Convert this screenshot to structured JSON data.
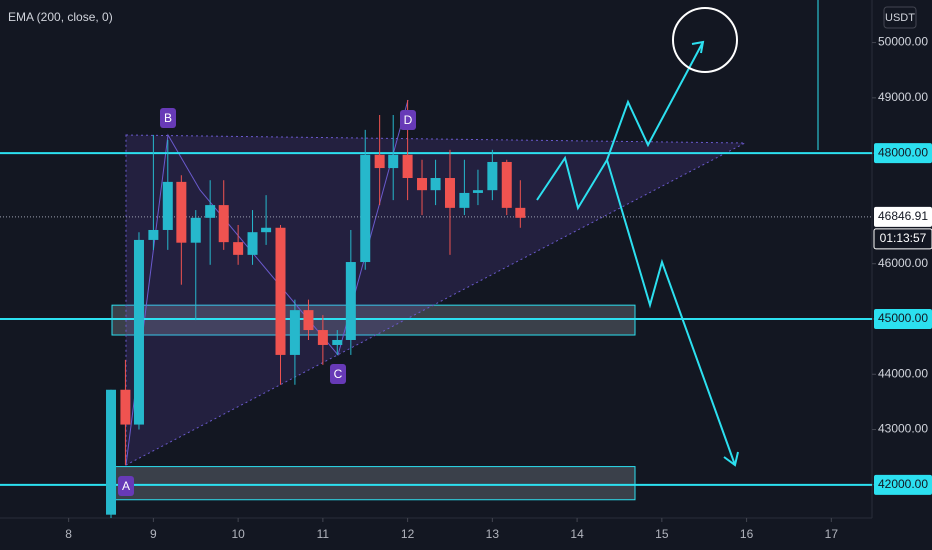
{
  "chart_data": {
    "type": "candlestick",
    "indicator": "EMA (200, close, 0)",
    "currency": "USDT",
    "x": [
      8.5,
      8.67,
      8.83,
      9,
      9.17,
      9.33,
      9.5,
      9.67,
      9.83,
      10,
      10.17,
      10.33,
      10.5,
      10.67,
      10.83,
      11,
      11.17,
      11.33,
      11.5,
      11.67,
      11.83,
      12,
      12.17,
      12.33,
      12.5,
      12.67,
      12.83,
      13,
      13.17,
      13.33
    ],
    "open": [
      41460,
      43720,
      43090,
      46430,
      46610,
      47480,
      46380,
      46830,
      47060,
      46390,
      46160,
      46570,
      46650,
      44350,
      45160,
      44800,
      44530,
      44620,
      46030,
      47970,
      47730,
      47970,
      47550,
      47330,
      47550,
      47010,
      47280,
      47330,
      47840,
      47010
    ],
    "high": [
      43720,
      44260,
      46570,
      48330,
      48240,
      47600,
      46970,
      47510,
      47510,
      46700,
      46970,
      47240,
      46700,
      45350,
      45350,
      45070,
      44800,
      46610,
      48420,
      48690,
      48690,
      48960,
      47880,
      47880,
      48060,
      47880,
      47700,
      48060,
      47880,
      47510
    ],
    "low": [
      41400,
      42360,
      43000,
      46250,
      46250,
      45620,
      44980,
      45980,
      46250,
      45980,
      45980,
      46340,
      43810,
      43810,
      44620,
      44170,
      44350,
      44350,
      45890,
      47060,
      47150,
      47150,
      46880,
      47060,
      46160,
      46880,
      47060,
      47150,
      46880,
      46650
    ],
    "close": [
      43720,
      43090,
      46430,
      46610,
      47480,
      46380,
      46830,
      47060,
      46390,
      46160,
      46570,
      46650,
      44350,
      45160,
      44800,
      44530,
      44620,
      46030,
      47970,
      47730,
      47970,
      47550,
      47330,
      47550,
      47010,
      47280,
      47330,
      47840,
      47010,
      46830
    ],
    "up_color": "#26b8cc",
    "down_color": "#ef5350",
    "xlim": [
      7.19,
      17.48
    ],
    "xticks": [
      8,
      9,
      10,
      11,
      12,
      13,
      14,
      15,
      16,
      17
    ],
    "ylim": [
      41400,
      50770
    ],
    "yticks": [
      {
        "value": 42000,
        "label": "42000.00"
      },
      {
        "value": 43000,
        "label": "43000.00"
      },
      {
        "value": 44000,
        "label": "44000.00"
      },
      {
        "value": 45000,
        "label": "45000.00"
      },
      {
        "value": 46000,
        "label": "46000.00"
      },
      {
        "value": 48000,
        "label": "48000.00"
      },
      {
        "value": 49000,
        "label": "49000.00"
      },
      {
        "value": 50000,
        "label": "50000.00"
      }
    ],
    "levels": [
      48000,
      45000,
      42000
    ],
    "level_color": "#2ce0f0",
    "zones": [
      [
        44710,
        45250
      ],
      [
        41730,
        42330
      ]
    ],
    "last_price": 46846.91,
    "countdown": "01:13:57",
    "points": [
      "A",
      "B",
      "C",
      "D"
    ]
  }
}
